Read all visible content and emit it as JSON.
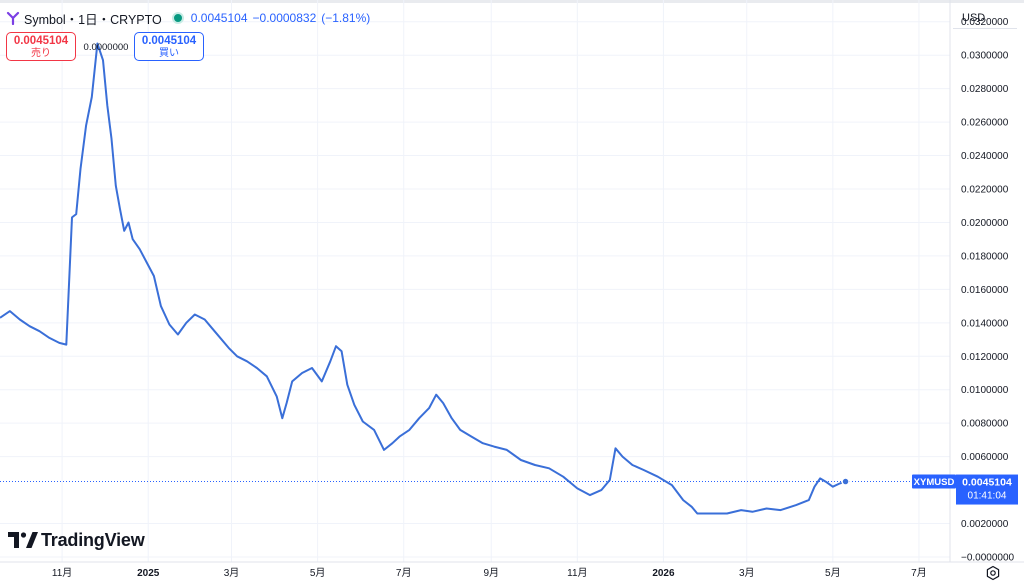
{
  "header": {
    "symbol_title": "Symbol・1日・CRYPTO",
    "last_price": "0.0045104",
    "change": "−0.0000832",
    "change_pct": "(−1.81%)"
  },
  "trade": {
    "sell_price": "0.0045104",
    "sell_label": "売り",
    "spread": "0.0000000",
    "buy_price": "0.0045104",
    "buy_label": "買い"
  },
  "currency": "USD",
  "brand": "TradingView",
  "price_tag": {
    "ticker": "XYMUSD",
    "price": "0.0045104",
    "countdown": "01:41:04"
  },
  "colors": {
    "line": "#3a6fd8",
    "price_tag": "#2962ff",
    "sell": "#f23645",
    "buy": "#2962ff",
    "grid": "#f0f3fa"
  },
  "chart_data": {
    "type": "line",
    "series": [
      {
        "x": [
          "2024-09-18",
          "2024-09-25",
          "2024-10-02",
          "2024-10-09",
          "2024-10-16",
          "2024-10-23",
          "2024-10-30",
          "2024-11-04",
          "2024-11-08",
          "2024-11-11",
          "2024-11-14",
          "2024-11-18",
          "2024-11-22",
          "2024-11-26",
          "2024-11-30",
          "2024-12-03",
          "2024-12-06",
          "2024-12-09",
          "2024-12-12",
          "2024-12-15",
          "2024-12-18",
          "2024-12-21",
          "2024-12-26",
          "2024-12-31",
          "2025-01-05",
          "2025-01-10",
          "2025-01-16",
          "2025-01-22",
          "2025-01-28",
          "2025-02-03",
          "2025-02-10",
          "2025-02-15",
          "2025-02-20",
          "2025-02-27",
          "2025-03-05",
          "2025-03-12",
          "2025-03-19",
          "2025-03-26",
          "2025-04-02",
          "2025-04-06",
          "2025-04-09",
          "2025-04-13",
          "2025-04-20",
          "2025-04-27",
          "2025-05-04",
          "2025-05-10",
          "2025-05-14",
          "2025-05-18",
          "2025-05-22",
          "2025-05-27",
          "2025-06-02",
          "2025-06-10",
          "2025-06-17",
          "2025-06-23",
          "2025-06-28",
          "2025-07-05",
          "2025-07-12",
          "2025-07-19",
          "2025-07-24",
          "2025-07-29",
          "2025-08-04",
          "2025-08-10",
          "2025-08-18",
          "2025-08-26",
          "2025-09-03",
          "2025-09-12",
          "2025-09-22",
          "2025-10-02",
          "2025-10-12",
          "2025-10-22",
          "2025-11-01",
          "2025-11-10",
          "2025-11-18",
          "2025-11-24",
          "2025-11-28",
          "2025-12-03",
          "2025-12-10",
          "2025-12-18",
          "2025-12-28",
          "2026-01-07",
          "2026-01-15",
          "2026-01-21",
          "2026-01-25",
          "2026-02-05",
          "2026-02-15",
          "2026-02-25",
          "2026-03-05",
          "2026-03-15",
          "2026-03-25",
          "2026-04-05",
          "2026-04-14",
          "2026-04-18",
          "2026-04-22",
          "2026-04-26",
          "2026-05-01",
          "2026-05-06",
          "2026-05-10"
        ],
        "y": [
          0.0143,
          0.0147,
          0.0142,
          0.0138,
          0.0135,
          0.0131,
          0.0128,
          0.0127,
          0.0203,
          0.0205,
          0.0232,
          0.0258,
          0.0275,
          0.0307,
          0.0297,
          0.027,
          0.025,
          0.0222,
          0.0208,
          0.0195,
          0.02,
          0.019,
          0.0184,
          0.0176,
          0.0168,
          0.015,
          0.0139,
          0.0133,
          0.014,
          0.0145,
          0.0142,
          0.0137,
          0.0132,
          0.0125,
          0.012,
          0.0117,
          0.0113,
          0.0108,
          0.0096,
          0.0083,
          0.0092,
          0.0105,
          0.011,
          0.0113,
          0.0105,
          0.0117,
          0.0126,
          0.0123,
          0.0103,
          0.0091,
          0.0081,
          0.0076,
          0.0064,
          0.0068,
          0.0072,
          0.0076,
          0.0083,
          0.0089,
          0.0097,
          0.0092,
          0.0083,
          0.0076,
          0.0072,
          0.0068,
          0.0066,
          0.0064,
          0.0058,
          0.0055,
          0.0053,
          0.0048,
          0.0041,
          0.0037,
          0.004,
          0.0046,
          0.0065,
          0.006,
          0.0055,
          0.0052,
          0.0048,
          0.0043,
          0.0034,
          0.003,
          0.0026,
          0.0026,
          0.0026,
          0.0028,
          0.0027,
          0.0029,
          0.0028,
          0.0031,
          0.0034,
          0.0042,
          0.0047,
          0.0045,
          0.0042,
          0.0044,
          0.0045104
        ]
      }
    ],
    "x_ticks": [
      {
        "date": "2024-11-01",
        "label": "11月"
      },
      {
        "date": "2025-01-01",
        "label": "2025"
      },
      {
        "date": "2025-03-01",
        "label": "3月"
      },
      {
        "date": "2025-05-01",
        "label": "5月"
      },
      {
        "date": "2025-07-01",
        "label": "7月"
      },
      {
        "date": "2025-09-01",
        "label": "9月"
      },
      {
        "date": "2025-11-01",
        "label": "11月"
      },
      {
        "date": "2026-01-01",
        "label": "2026"
      },
      {
        "date": "2026-03-01",
        "label": "3月"
      },
      {
        "date": "2026-05-01",
        "label": "5月"
      },
      {
        "date": "2026-07-01",
        "label": "7月"
      }
    ],
    "xlim": [
      "2024-09-18",
      "2026-07-23"
    ],
    "y_ticks": [
      "0.0320000",
      "0.0300000",
      "0.0280000",
      "0.0260000",
      "0.0240000",
      "0.0220000",
      "0.0200000",
      "0.0180000",
      "0.0160000",
      "0.0140000",
      "0.0120000",
      "0.0100000",
      "0.0080000",
      "0.0060000",
      "0.0020000",
      "−0.0000000"
    ],
    "ylim": [
      -0.0003,
      0.0333
    ],
    "last_value": 0.0045104,
    "grid": true,
    "legend": "none"
  }
}
